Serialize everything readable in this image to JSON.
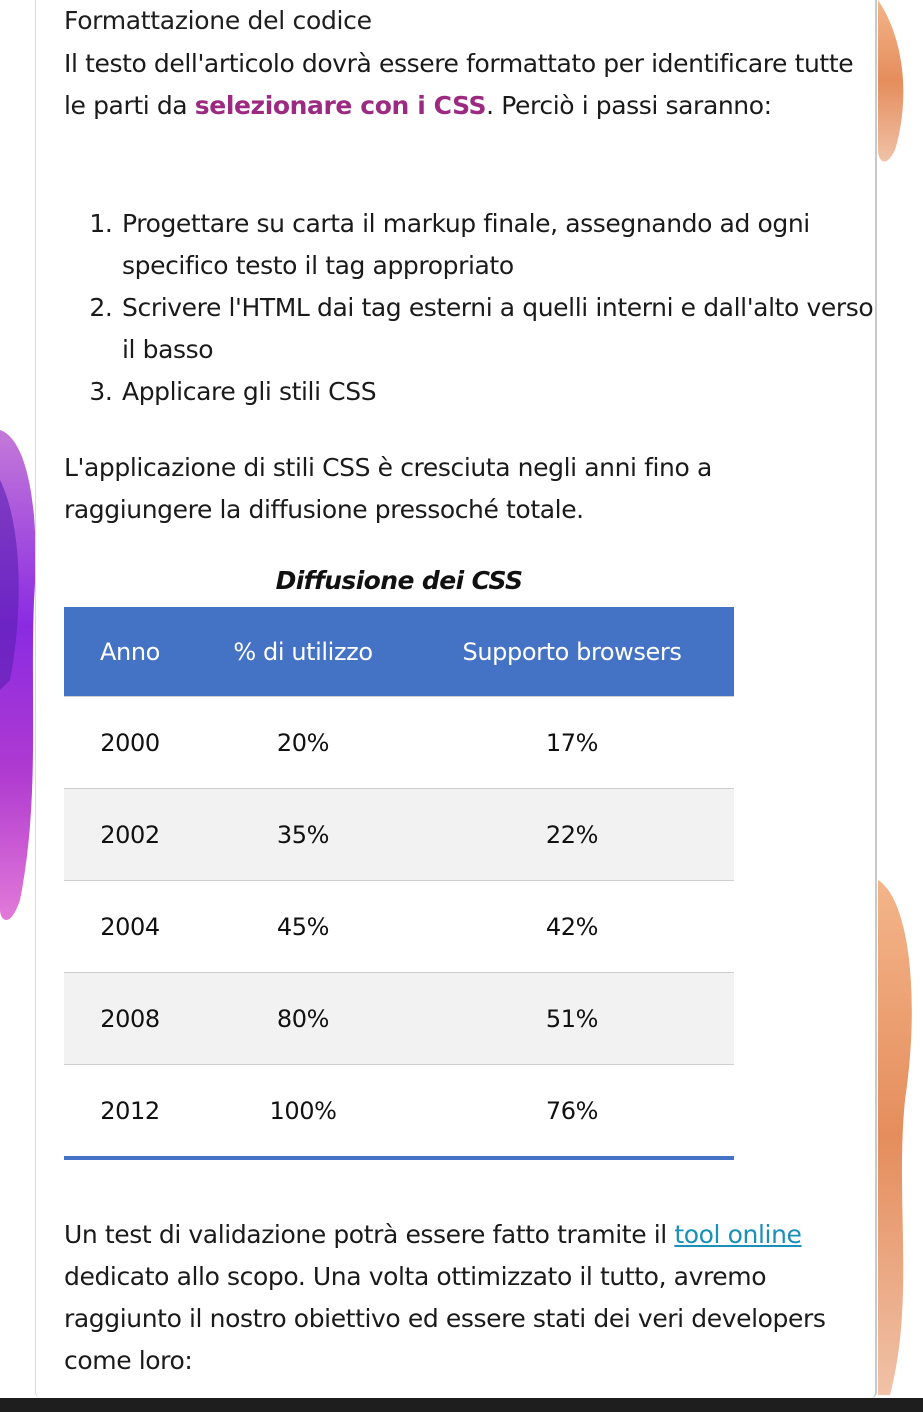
{
  "section_title": "Formattazione del codice",
  "intro": {
    "before": "Il testo dell'articolo dovrà essere formattato per identificare tutte le parti da ",
    "link": "selezionare con i CSS",
    "after": ". Perciò i passi saranno:"
  },
  "steps": [
    "Progettare su carta il markup finale, assegnando ad ogni specifico testo il tag appropriato",
    "Scrivere l'HTML dai tag esterni a quelli interni e dall'alto verso il basso",
    "Applicare gli stili CSS"
  ],
  "paragraph2": "L'applicazione di stili CSS è cresciuta negli anni fino a raggiungere la diffusione pressoché totale.",
  "table": {
    "title": "Diffusione dei CSS",
    "headers": [
      "Anno",
      "% di utilizzo",
      "Supporto browsers"
    ],
    "rows": [
      [
        "2000",
        "20%",
        "17%"
      ],
      [
        "2002",
        "35%",
        "22%"
      ],
      [
        "2004",
        "45%",
        "42%"
      ],
      [
        "2008",
        "80%",
        "51%"
      ],
      [
        "2012",
        "100%",
        "76%"
      ]
    ]
  },
  "closing": {
    "before": "Un test di validazione potrà essere fatto tramite il ",
    "link": "tool online",
    "after": " dedicato allo scopo. Una volta ottimizzato il tutto, avremo raggiunto il nostro obiettivo ed essere stati dei veri developers come loro:"
  },
  "colors": {
    "link_accent": "#9b2a80",
    "tool_link": "#1a8fb8",
    "table_header": "#4472c4",
    "row_alt": "#f2f2f2"
  }
}
